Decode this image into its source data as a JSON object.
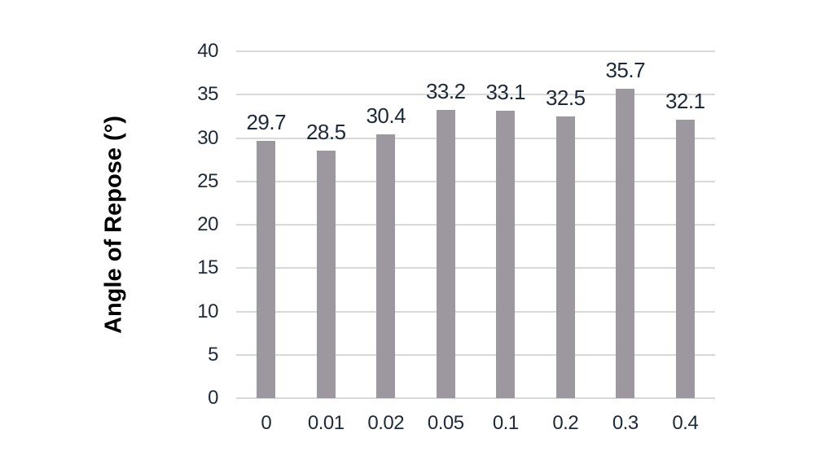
{
  "chart_data": {
    "type": "bar",
    "categories": [
      "0",
      "0.01",
      "0.02",
      "0.05",
      "0.1",
      "0.2",
      "0.3",
      "0.4"
    ],
    "values": [
      29.7,
      28.5,
      30.4,
      33.2,
      33.1,
      32.5,
      35.7,
      32.1
    ],
    "value_labels": [
      "29.7",
      "28.5",
      "30.4",
      "33.2",
      "33.1",
      "32.5",
      "35.7",
      "32.1"
    ],
    "title": "",
    "xlabel": "",
    "ylabel": "Angle of Repose (°)",
    "ylim": [
      0,
      40
    ],
    "ytick_step": 5,
    "yticks": [
      "0",
      "5",
      "10",
      "15",
      "20",
      "25",
      "30",
      "35",
      "40"
    ],
    "grid": "horizontal",
    "legend": "none",
    "colors": {
      "bar": "#9d97a0",
      "tick_text": "#1d2a39",
      "value_text": "#1d2a39",
      "axis_title_text": "#000000",
      "gridline": "#d9d9d9",
      "background": "#ffffff"
    }
  }
}
